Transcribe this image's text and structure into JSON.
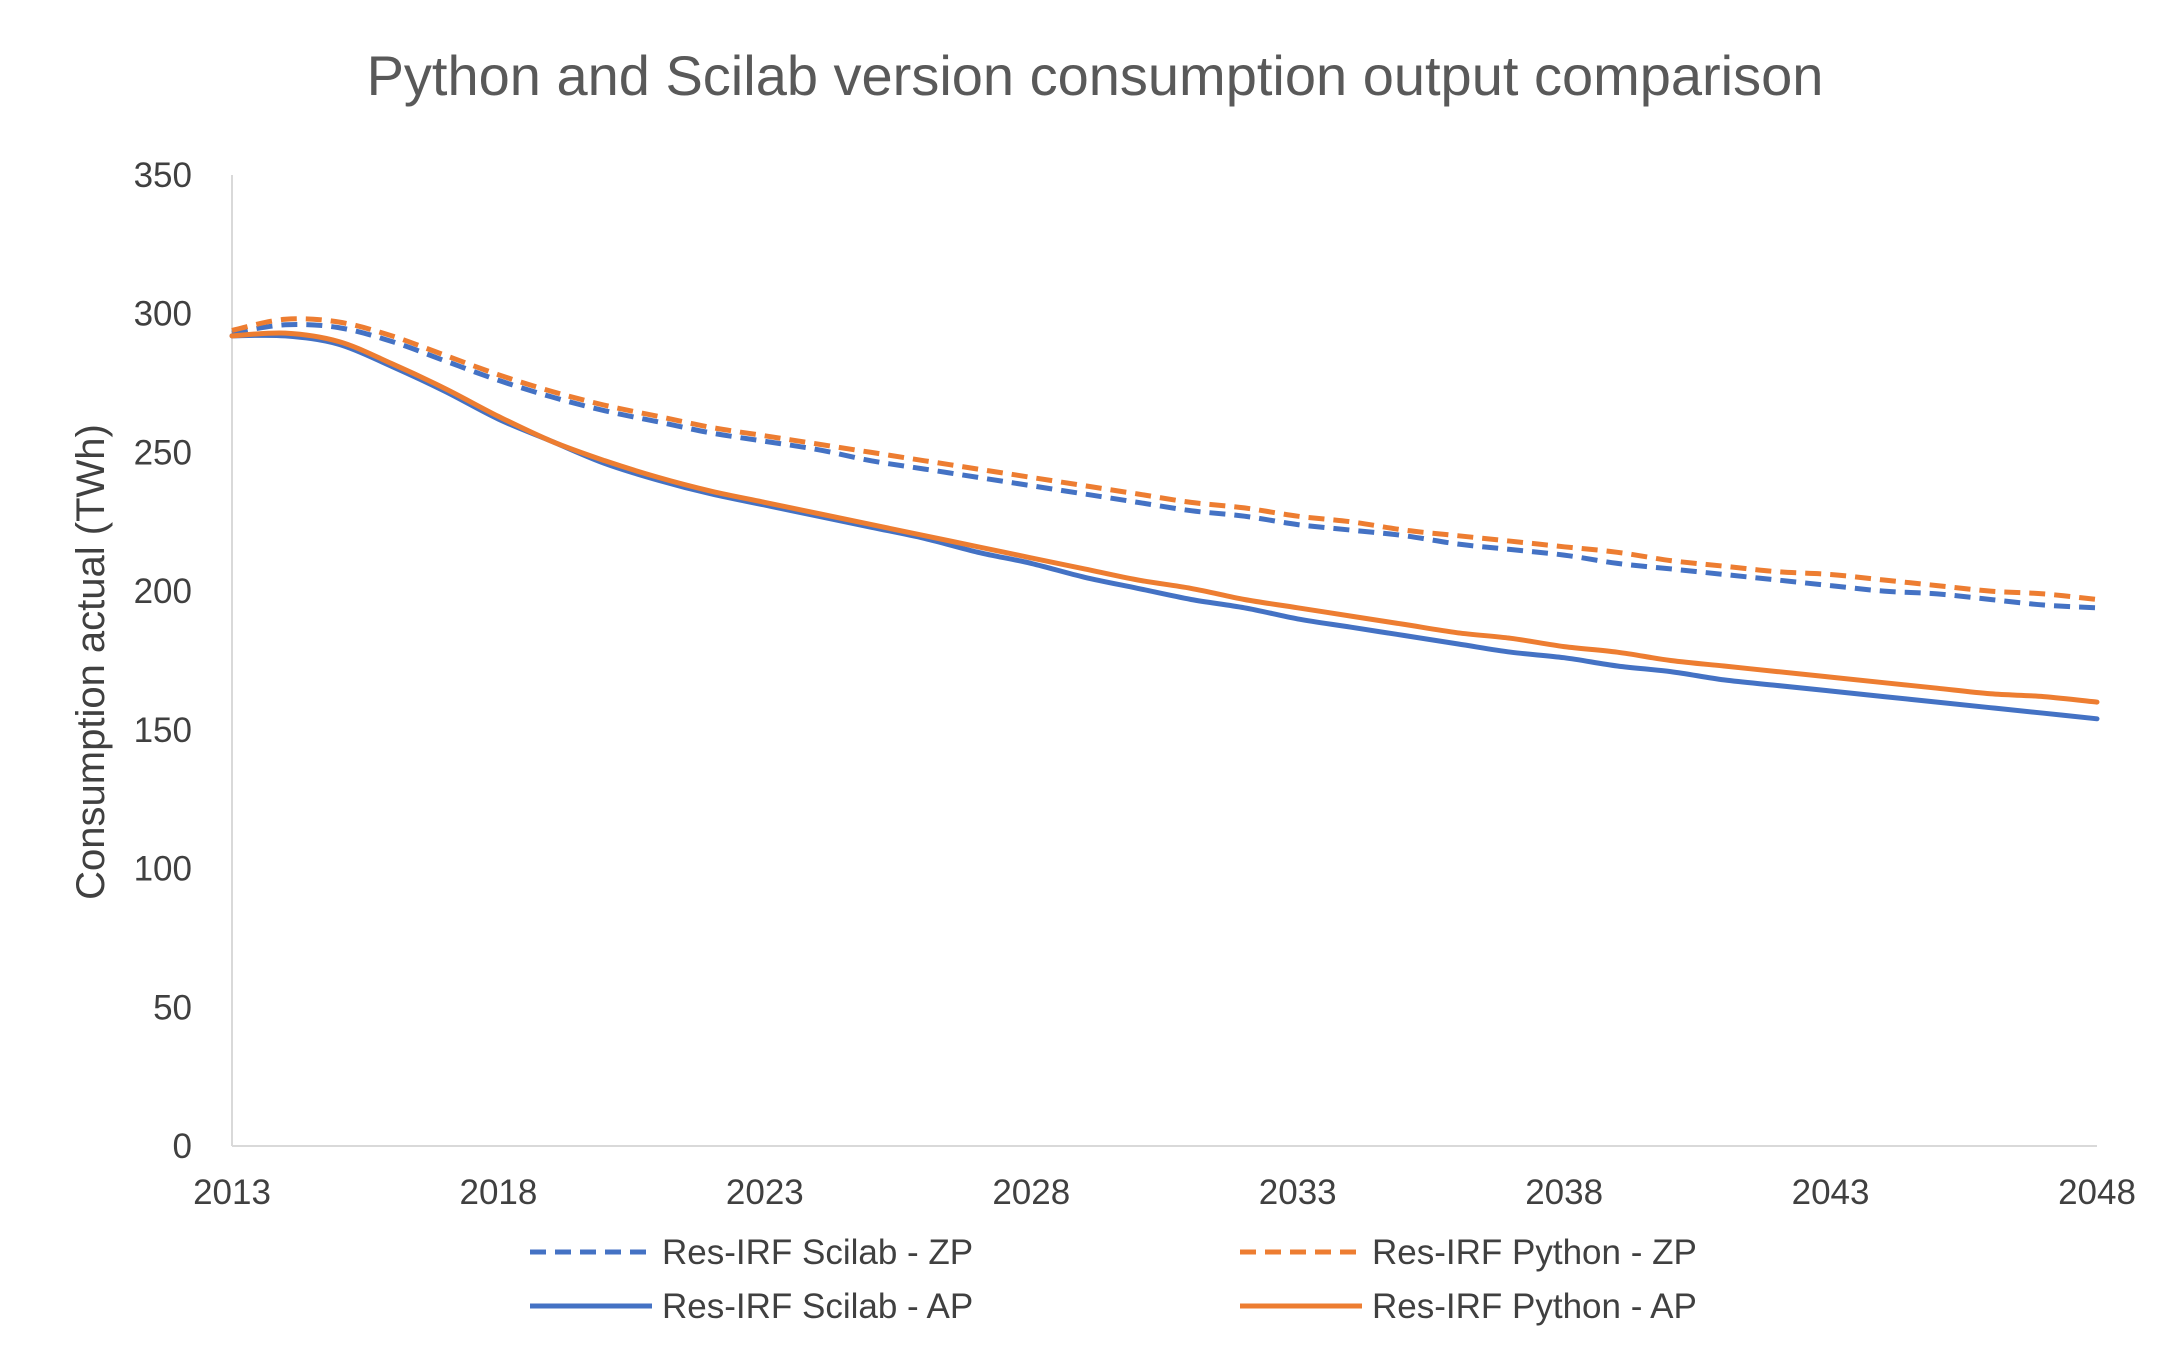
{
  "chart_data": {
    "type": "line",
    "title": "Python and Scilab version consumption output comparison",
    "xlabel": "",
    "ylabel": "Consumption actual (TWh)",
    "xlim": [
      2013,
      2048
    ],
    "ylim": [
      0,
      350
    ],
    "xticks": [
      2013,
      2018,
      2023,
      2028,
      2033,
      2038,
      2043,
      2048
    ],
    "yticks": [
      0,
      50,
      100,
      150,
      200,
      250,
      300,
      350
    ],
    "grid": false,
    "legend_position": "bottom",
    "x": [
      2013,
      2014,
      2015,
      2016,
      2017,
      2018,
      2019,
      2020,
      2021,
      2022,
      2023,
      2024,
      2025,
      2026,
      2027,
      2028,
      2029,
      2030,
      2031,
      2032,
      2033,
      2034,
      2035,
      2036,
      2037,
      2038,
      2039,
      2040,
      2041,
      2042,
      2043,
      2044,
      2045,
      2046,
      2047,
      2048
    ],
    "series": [
      {
        "name": "Res-IRF Scilab - ZP",
        "color": "#4472C4",
        "dash": "dashed",
        "values": [
          293,
          296,
          295,
          290,
          283,
          276,
          270,
          265,
          261,
          257,
          254,
          251,
          247,
          244,
          241,
          238,
          235,
          232,
          229,
          227,
          224,
          222,
          220,
          217,
          215,
          213,
          210,
          208,
          206,
          204,
          202,
          200,
          199,
          197,
          195,
          194
        ]
      },
      {
        "name": "Res-IRF Python - ZP",
        "color": "#ED7D31",
        "dash": "dashed",
        "values": [
          294,
          298,
          297,
          292,
          285,
          278,
          272,
          267,
          263,
          259,
          256,
          253,
          250,
          247,
          244,
          241,
          238,
          235,
          232,
          230,
          227,
          225,
          222,
          220,
          218,
          216,
          214,
          211,
          209,
          207,
          206,
          204,
          202,
          200,
          199,
          197
        ]
      },
      {
        "name": "Res-IRF Scilab - AP",
        "color": "#4472C4",
        "dash": "solid",
        "values": [
          292,
          292,
          289,
          281,
          272,
          262,
          254,
          246,
          240,
          235,
          231,
          227,
          223,
          219,
          214,
          210,
          205,
          201,
          197,
          194,
          190,
          187,
          184,
          181,
          178,
          176,
          173,
          171,
          168,
          166,
          164,
          162,
          160,
          158,
          156,
          154
        ]
      },
      {
        "name": "Res-IRF Python - AP",
        "color": "#ED7D31",
        "dash": "solid",
        "values": [
          292,
          293,
          290,
          282,
          273,
          263,
          254,
          247,
          241,
          236,
          232,
          228,
          224,
          220,
          216,
          212,
          208,
          204,
          201,
          197,
          194,
          191,
          188,
          185,
          183,
          180,
          178,
          175,
          173,
          171,
          169,
          167,
          165,
          163,
          162,
          160
        ]
      }
    ]
  }
}
